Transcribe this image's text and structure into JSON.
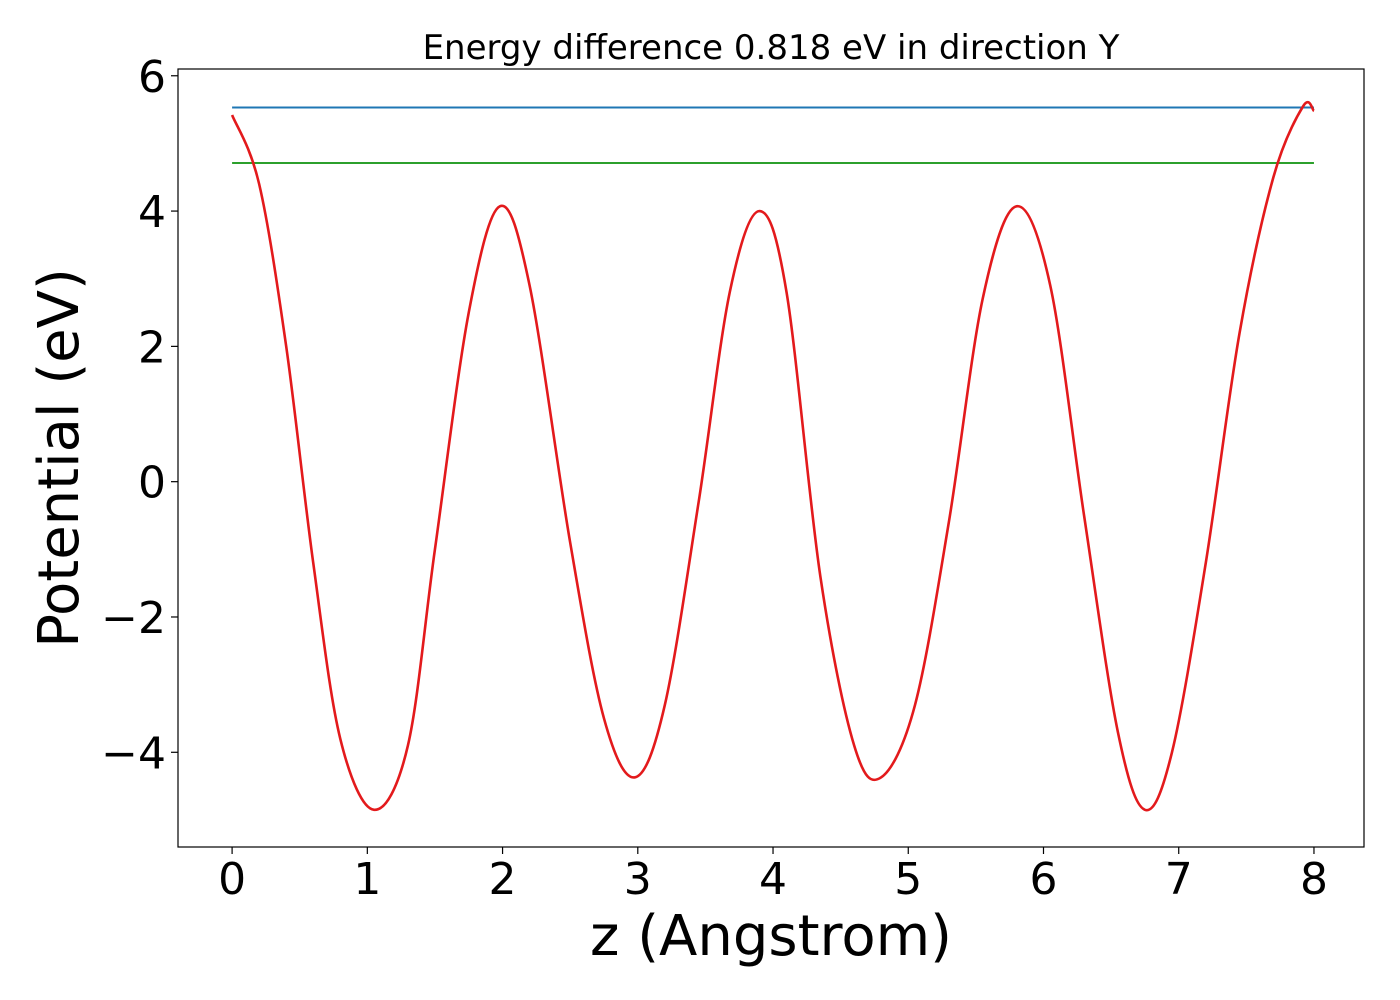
{
  "chart_data": {
    "type": "line",
    "title": "Energy difference 0.818 eV in direction Y",
    "xlabel": "z (Angstrom)",
    "ylabel": "Potential (eV)",
    "xlim": [
      -0.4,
      8.37
    ],
    "ylim": [
      -5.4,
      6.1
    ],
    "xticks": [
      0,
      1,
      2,
      3,
      4,
      5,
      6,
      7,
      8
    ],
    "yticks": [
      -4,
      -2,
      0,
      2,
      4,
      6
    ],
    "ytick_labels": [
      "−4",
      "−2",
      "0",
      "2",
      "4",
      "6"
    ],
    "grid": false,
    "legend": "none",
    "series": [
      {
        "color": "#1f77b4",
        "x": [
          0,
          8
        ],
        "y": [
          5.53,
          5.53
        ]
      },
      {
        "color": "#2ca02c",
        "x": [
          0,
          8
        ],
        "y": [
          4.71,
          4.71
        ]
      },
      {
        "color": "#e31a1c",
        "x": [
          0.0,
          0.2,
          0.4,
          0.6,
          0.8,
          1.05,
          1.3,
          1.5,
          1.75,
          1.98,
          2.2,
          2.5,
          2.75,
          2.98,
          3.2,
          3.45,
          3.68,
          3.9,
          4.1,
          4.35,
          4.6,
          4.8,
          5.05,
          5.3,
          5.55,
          5.8,
          6.05,
          6.3,
          6.55,
          6.75,
          6.95,
          7.2,
          7.45,
          7.7,
          7.92,
          8.0
        ],
        "y": [
          5.42,
          4.4,
          2.0,
          -1.2,
          -3.8,
          -4.85,
          -3.9,
          -1.0,
          2.5,
          4.07,
          2.9,
          -0.9,
          -3.5,
          -4.37,
          -3.3,
          -0.3,
          2.8,
          4.0,
          2.8,
          -1.4,
          -3.9,
          -4.37,
          -3.3,
          -0.6,
          2.7,
          4.07,
          2.9,
          -0.5,
          -3.7,
          -4.85,
          -4.0,
          -1.2,
          2.2,
          4.5,
          5.55,
          5.48
        ]
      }
    ]
  }
}
